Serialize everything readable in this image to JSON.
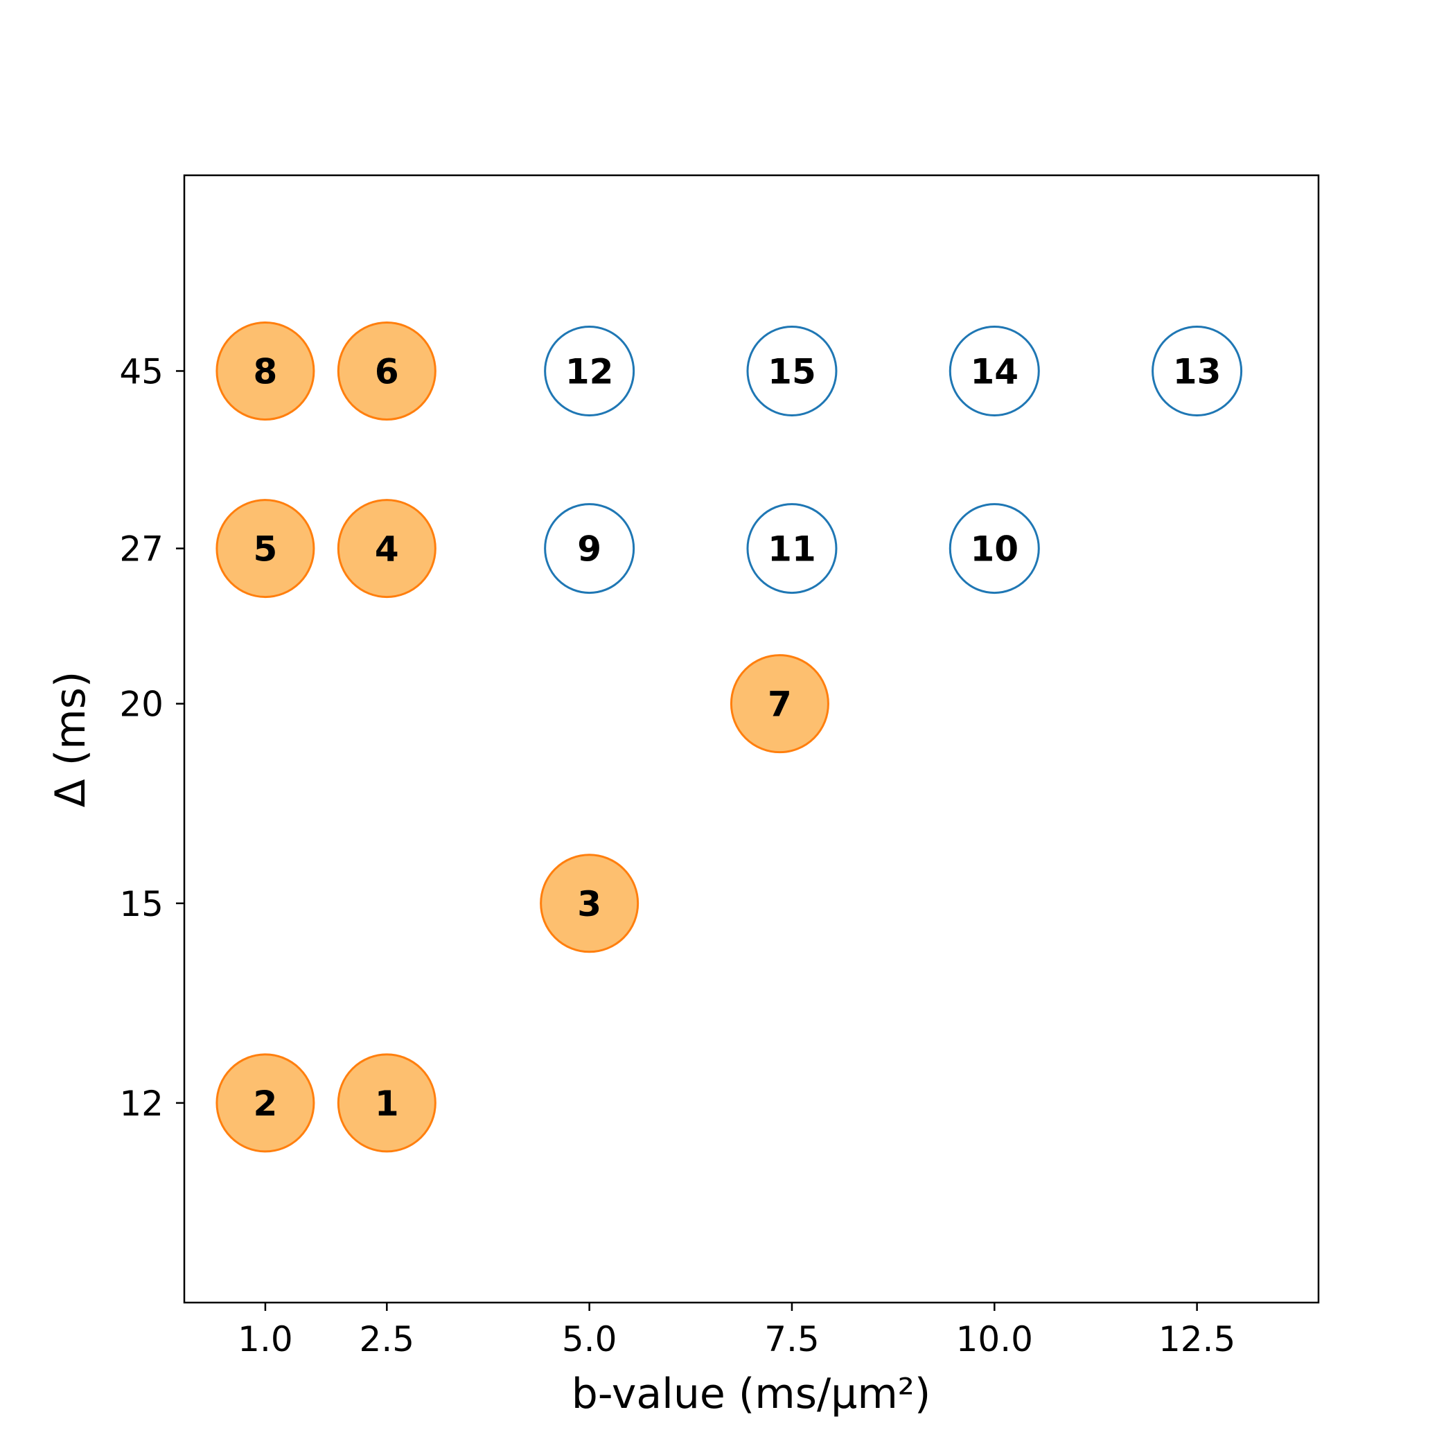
{
  "chart_data": {
    "type": "scatter",
    "title": "",
    "xlabel": "b-value (ms/μm²)",
    "ylabel": "Δ (ms)",
    "xlim": [
      0.0,
      14.0
    ],
    "y_scale": "reciprocal",
    "ylim": [
      10,
      170
    ],
    "x_ticks": [
      1.0,
      2.5,
      5.0,
      7.5,
      10.0,
      12.5
    ],
    "x_tick_labels": [
      "1.0",
      "2.5",
      "5.0",
      "7.5",
      "10.0",
      "12.5"
    ],
    "y_ticks": [
      12,
      15,
      20,
      27,
      45
    ],
    "y_tick_labels": [
      "12",
      "15",
      "20",
      "27",
      "45"
    ],
    "grid": false,
    "series": [
      {
        "style": "filled",
        "color": "#fdbf6f",
        "edge_color": "#ff7f0e",
        "points": [
          {
            "label": "1",
            "x": 2.5,
            "y": 12
          },
          {
            "label": "2",
            "x": 1.0,
            "y": 12
          },
          {
            "label": "3",
            "x": 5.0,
            "y": 15
          },
          {
            "label": "4",
            "x": 2.5,
            "y": 27
          },
          {
            "label": "5",
            "x": 1.0,
            "y": 27
          },
          {
            "label": "6",
            "x": 2.5,
            "y": 45
          },
          {
            "label": "7",
            "x": 7.35,
            "y": 20
          },
          {
            "label": "8",
            "x": 1.0,
            "y": 45
          }
        ]
      },
      {
        "style": "hollow",
        "color": "#ffffff",
        "edge_color": "#1f77b4",
        "points": [
          {
            "label": "9",
            "x": 5.0,
            "y": 27
          },
          {
            "label": "10",
            "x": 10.0,
            "y": 27
          },
          {
            "label": "11",
            "x": 7.5,
            "y": 27
          },
          {
            "label": "12",
            "x": 5.0,
            "y": 45
          },
          {
            "label": "13",
            "x": 12.5,
            "y": 45
          },
          {
            "label": "14",
            "x": 10.0,
            "y": 45
          },
          {
            "label": "15",
            "x": 7.5,
            "y": 45
          }
        ]
      }
    ]
  }
}
